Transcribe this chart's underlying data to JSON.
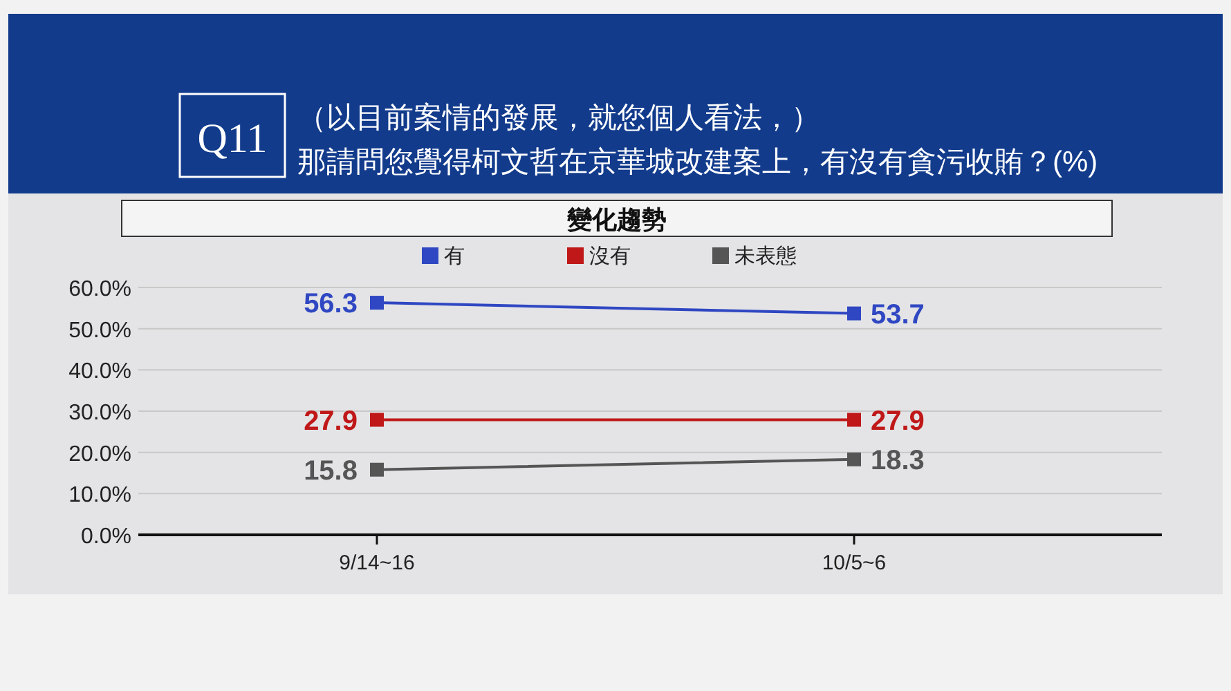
{
  "chart_data": {
    "type": "line",
    "title": "變化趨勢",
    "subtitle": "（以目前案情的發展，就您個人看法，）那請問您覺得柯文哲在京華城改建案上，有沒有貪污收賄？(%)",
    "annotations": [
      "Q11"
    ],
    "categories": [
      "9/14~16",
      "10/5~6"
    ],
    "series": [
      {
        "name": "有",
        "color": "#2f47c2",
        "values": [
          56.3,
          53.7
        ]
      },
      {
        "name": "沒有",
        "color": "#c01818",
        "values": [
          27.9,
          27.9
        ]
      },
      {
        "name": "未表態",
        "color": "#555555",
        "values": [
          15.8,
          18.3
        ]
      }
    ],
    "ylim": [
      0,
      60
    ],
    "yticks": [
      {
        "value": 0,
        "label": "0.0%"
      },
      {
        "value": 10,
        "label": "10.0%"
      },
      {
        "value": 20,
        "label": "20.0%"
      },
      {
        "value": 30,
        "label": "30.0%"
      },
      {
        "value": 40,
        "label": "40.0%"
      },
      {
        "value": 50,
        "label": "50.0%"
      },
      {
        "value": 60,
        "label": "60.0%"
      }
    ],
    "grid": "y",
    "legend": "top",
    "marker": "square",
    "line_style": "solid",
    "data_labels": true
  }
}
